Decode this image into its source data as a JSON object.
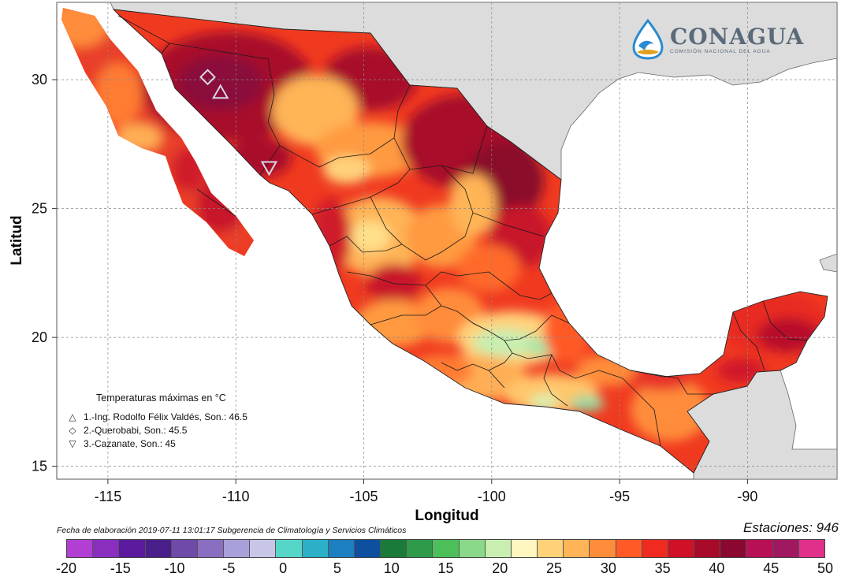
{
  "map": {
    "xlabel": "Longitud",
    "ylabel": "Latitud",
    "x_ticks": [
      -115,
      -110,
      -105,
      -100,
      -95,
      -90
    ],
    "y_ticks": [
      30,
      25,
      20,
      15
    ],
    "x_range": [
      -117,
      -86.5
    ],
    "y_range": [
      14.5,
      33
    ],
    "grid": true,
    "land_color_outside": "#dcdcdc",
    "ocean_color": "#ffffff"
  },
  "logo": {
    "name": "CONAGUA",
    "subtitle": "COMISIÓN NACIONAL DEL AGUA",
    "icon": "water-drop-icon"
  },
  "legend": {
    "title": "Temperaturas máximas en °C",
    "items": [
      {
        "symbol": "△",
        "icon": "triangle-up-icon",
        "text": "1.-Ing. Rodolfo Félix Valdés, Son.: 46.5",
        "lon": -110.6,
        "lat": 29.5
      },
      {
        "symbol": "◇",
        "icon": "diamond-icon",
        "text": "2.-Querobabi, Son.: 45.5",
        "lon": -111.1,
        "lat": 30.1
      },
      {
        "symbol": "▽",
        "icon": "triangle-down-icon",
        "text": "3.-Cazanate, Son.: 45",
        "lon": -108.7,
        "lat": 26.6
      }
    ]
  },
  "footer": {
    "date_text": "Fecha de elaboración 2019-07-11 13:01:17 Subgerencia de Climatología y Servicios Climáticos",
    "stations_text": "Estaciones:  946"
  },
  "colorbar": {
    "labels": [
      "-20",
      "-15",
      "-10",
      "-5",
      "0",
      "5",
      "10",
      "15",
      "20",
      "25",
      "30",
      "35",
      "40",
      "45",
      "50"
    ],
    "colors": [
      "#b23fd3",
      "#8a2ec0",
      "#5b1a9e",
      "#4b1f8a",
      "#6f4aa8",
      "#8a6ec0",
      "#a8a0d8",
      "#c8c6e6",
      "#56d6c8",
      "#2bb0c8",
      "#1b7fc0",
      "#0f4fa0",
      "#1a7a3a",
      "#2e9a4a",
      "#4cbf5a",
      "#8ad88a",
      "#c8eeb0",
      "#fff6c0",
      "#ffd27a",
      "#ffb457",
      "#ff8c3a",
      "#ff5a28",
      "#f02a1e",
      "#d01026",
      "#a80a2a",
      "#8a0830",
      "#b80f55",
      "#a01860",
      "#e0308a"
    ]
  }
}
